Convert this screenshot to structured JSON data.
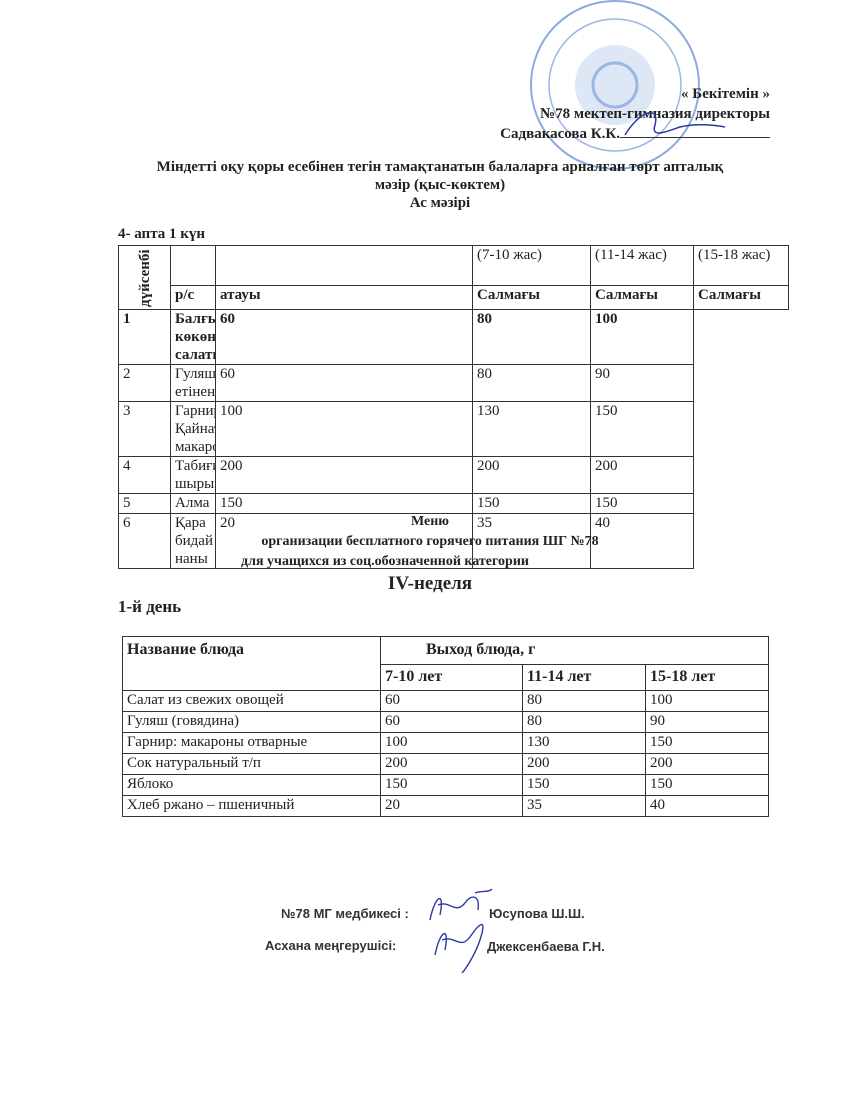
{
  "approval": {
    "title": "« Бекітемін »",
    "line1": "№78  мектеп-гимназия директоры",
    "line2": "Садвакасова К.К."
  },
  "kaz_header": {
    "line1": "Міндетті оқу қоры есебінен  тегін тамақтанатын балаларға арналған төрт  апталық",
    "line2": "мәзір (қыс-көктем)",
    "line3": "Ас  мәзірі"
  },
  "kaz_day": "4- апта  1 күн",
  "kaz_table": {
    "day_label": "дүйсенбі",
    "age_headers": [
      "(7-10 жас)",
      "(11-14 жас)",
      "(15-18 жас)"
    ],
    "col_no": "р/с",
    "col_name": "атауы",
    "col_weight": "Салмағы",
    "rows": [
      {
        "no": "1",
        "name": "Балғын көкөніс салаты",
        "v": [
          "60",
          "80",
          "100"
        ],
        "bold": true
      },
      {
        "no": "2",
        "name": "Гуляш(сиыр етінен)",
        "v": [
          "60",
          "80",
          "90"
        ]
      },
      {
        "no": "3",
        "name": "Гарнир: Қайнатылған макарон",
        "v": [
          "100",
          "130",
          "150"
        ]
      },
      {
        "no": "4",
        "name": "Табиғи шырын",
        "v": [
          "200",
          "200",
          "200"
        ]
      },
      {
        "no": "5",
        "name": "Алма",
        "v": [
          "150",
          "150",
          "150"
        ]
      },
      {
        "no": "6",
        "name": "Қара бидай наны",
        "v": [
          "20",
          "35",
          "40"
        ]
      }
    ]
  },
  "ru_header": {
    "line1": "Меню",
    "line2": "организации бесплатного горячего питания ШГ №78",
    "line3": "для учащихся из соц.обозначенной категории",
    "week": "IV-неделя"
  },
  "ru_day": "1-й день",
  "ru_table": {
    "col_name": "Название блюда",
    "col_yield": "Выход блюда, г",
    "ages": [
      "7-10 лет",
      "11-14 лет",
      "15-18 лет"
    ],
    "rows": [
      {
        "name": "Салат из свежих овощей",
        "v": [
          "60",
          "80",
          "100"
        ]
      },
      {
        "name": "Гуляш (говядина)",
        "v": [
          "60",
          "80",
          "90"
        ]
      },
      {
        "name": "Гарнир: макароны отварные",
        "v": [
          "100",
          "130",
          "150"
        ]
      },
      {
        "name": "Сок натуральный т/п",
        "v": [
          "200",
          "200",
          "200"
        ]
      },
      {
        "name": "Яблоко",
        "v": [
          "150",
          "150",
          "150"
        ]
      },
      {
        "name": "Хлеб ржано – пшеничный",
        "v": [
          "20",
          "35",
          "40"
        ]
      }
    ]
  },
  "signatures": {
    "nurse_role": "№78 МГ медбикесі :",
    "nurse_name": "Юсупова Ш.Ш.",
    "cook_role": "Асхана меңгерушісі:",
    "cook_name": "Джексенбаева Г.Н."
  },
  "colors": {
    "stamp": "#3a6fc4",
    "signature_ink": "#2a3aa0"
  }
}
